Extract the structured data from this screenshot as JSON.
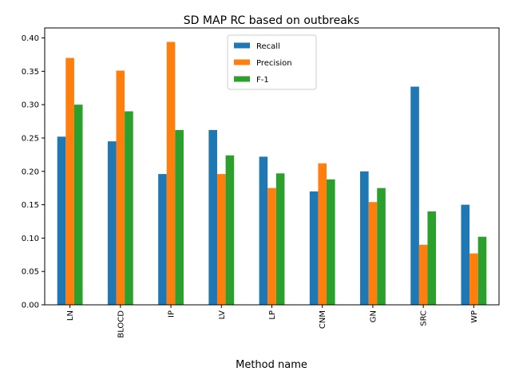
{
  "chart_data": {
    "type": "bar",
    "title": "SD MAP RC based on outbreaks",
    "xlabel": "Method name",
    "ylabel": "",
    "categories": [
      "LN",
      "BLOCD",
      "IP",
      "LV",
      "LP",
      "CNM",
      "GN",
      "SRC",
      "WP"
    ],
    "series": [
      {
        "name": "Recall",
        "color": "#1f77b4",
        "values": [
          0.252,
          0.245,
          0.196,
          0.262,
          0.222,
          0.17,
          0.2,
          0.327,
          0.15
        ]
      },
      {
        "name": "Precision",
        "color": "#ff7f0e",
        "values": [
          0.37,
          0.351,
          0.394,
          0.196,
          0.175,
          0.212,
          0.154,
          0.09,
          0.077
        ]
      },
      {
        "name": "F-1",
        "color": "#2ca02c",
        "values": [
          0.3,
          0.29,
          0.262,
          0.224,
          0.197,
          0.188,
          0.175,
          0.14,
          0.102
        ]
      }
    ],
    "ylim": [
      0,
      0.415
    ],
    "yticks": [
      0.0,
      0.05,
      0.1,
      0.15,
      0.2,
      0.25,
      0.3,
      0.35,
      0.4
    ],
    "ytick_labels": [
      "0.00",
      "0.05",
      "0.10",
      "0.15",
      "0.20",
      "0.25",
      "0.30",
      "0.35",
      "0.40"
    ],
    "grid": false,
    "legend_position": "top-center"
  }
}
